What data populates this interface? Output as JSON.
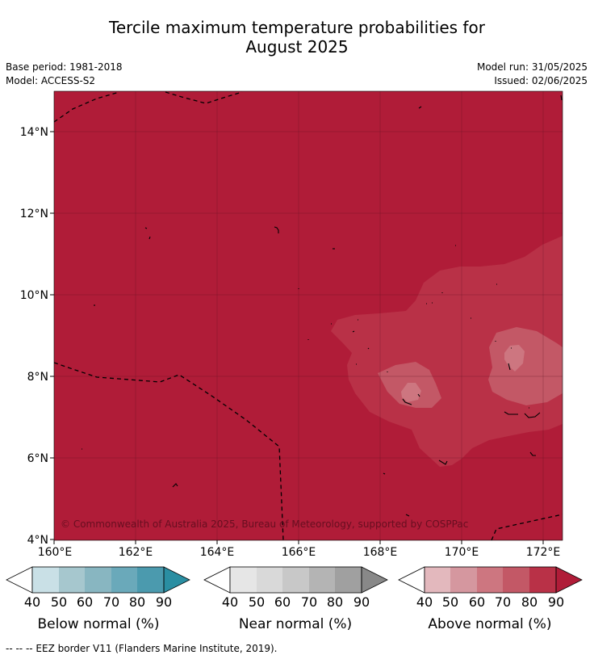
{
  "title": {
    "line1": "Tercile maximum temperature probabilities for",
    "line2": "August 2025"
  },
  "meta": {
    "base_period": "Base period: 1981-2018",
    "model": "Model: ACCESS-S2",
    "model_run": "Model run: 31/05/2025",
    "issued": "Issued: 02/06/2025"
  },
  "map": {
    "lat_ticks": [
      "14°N",
      "12°N",
      "10°N",
      "8°N",
      "6°N",
      "4°N"
    ],
    "lon_ticks": [
      "160°E",
      "162°E",
      "164°E",
      "166°E",
      "168°E",
      "170°E",
      "172°E"
    ],
    "lon_range": [
      160,
      172.5
    ],
    "lat_range": [
      4,
      15
    ],
    "copyright": "© Commonwealth of Australia 2025, Bureau of Meteorology, supported by COSPPac",
    "dominant_category": "Above normal",
    "dominant_level": "80-90%"
  },
  "colorbars": [
    {
      "label": "Below normal (%)",
      "ticks": [
        "40",
        "50",
        "60",
        "70",
        "80",
        "90"
      ],
      "colors": [
        "#ffffff",
        "#c9e0e6",
        "#a6c7ce",
        "#88b6c1",
        "#6aa9ba",
        "#4b9aae",
        "#2a8ea2"
      ]
    },
    {
      "label": "Near normal (%)",
      "ticks": [
        "40",
        "50",
        "60",
        "70",
        "80",
        "90"
      ],
      "colors": [
        "#ffffff",
        "#e6e6e6",
        "#d9d9d9",
        "#c8c8c8",
        "#b4b4b4",
        "#a0a0a0",
        "#888888"
      ]
    },
    {
      "label": "Above normal (%)",
      "ticks": [
        "40",
        "50",
        "60",
        "70",
        "80",
        "90"
      ],
      "colors": [
        "#ffffff",
        "#e3b8bd",
        "#d5979f",
        "#cd7680",
        "#c35866",
        "#b93147",
        "#b01c38"
      ]
    }
  ],
  "footnote": "--  --  -- EEZ border V11 (Flanders Marine Institute, 2019)."
}
